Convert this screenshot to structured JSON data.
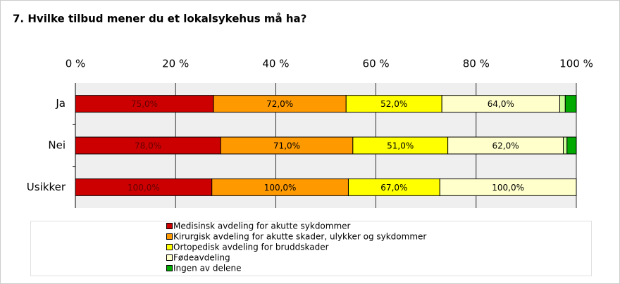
{
  "chart_data": {
    "type": "stacked_percent_bar",
    "title": "7. Hvilke tilbud mener du et lokalsykehus må ha?",
    "categories": [
      "Ja",
      "Nei",
      "Usikker"
    ],
    "series": [
      {
        "name": "Medisinsk avdeling for akutte sykdommer",
        "color": "#cc0000",
        "values": [
          75,
          78,
          100
        ],
        "value_labels": [
          "75,0%",
          "78,0%",
          "100,0%"
        ]
      },
      {
        "name": "Kirurgisk avdeling for akutte skader, ulykker og sykdommer",
        "color": "#ff9900",
        "values": [
          72,
          71,
          100
        ],
        "value_labels": [
          "72,0%",
          "71,0%",
          "100,0%"
        ]
      },
      {
        "name": "Ortopedisk avdeling for bruddskader",
        "color": "#ffff00",
        "values": [
          52,
          51,
          67
        ],
        "value_labels": [
          "52,0%",
          "51,0%",
          "67,0%"
        ]
      },
      {
        "name": "Fødeavdeling",
        "color": "#ffffcc",
        "values": [
          64,
          62,
          100
        ],
        "value_labels": [
          "64,0%",
          "62,0%",
          "100,0%"
        ]
      },
      {
        "color": "#ccff99",
        "values": [
          3,
          2,
          0
        ]
      },
      {
        "name": "Ingen av delene",
        "color": "#00aa00",
        "values": [
          6,
          5,
          0
        ]
      }
    ],
    "xlim": [
      0,
      100
    ],
    "xticks": [
      {
        "value": 0,
        "label": "0 %"
      },
      {
        "value": 20,
        "label": "20 %"
      },
      {
        "value": 40,
        "label": "40 %"
      },
      {
        "value": 60,
        "label": "60 %"
      },
      {
        "value": 80,
        "label": "80 %"
      },
      {
        "value": 100,
        "label": "100 %"
      }
    ],
    "grid": true
  }
}
